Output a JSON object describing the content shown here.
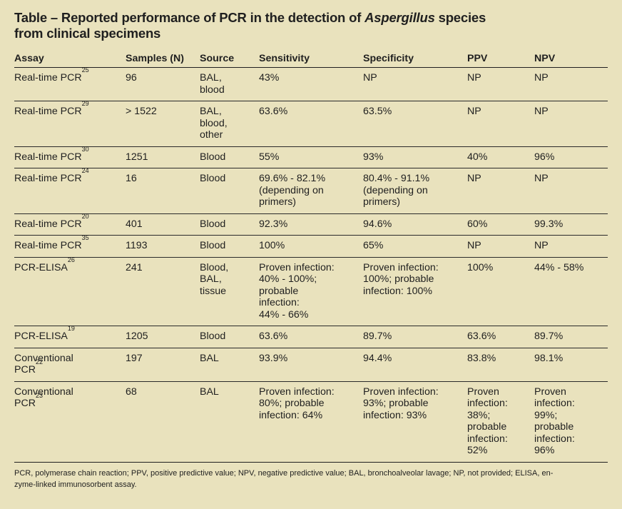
{
  "title": {
    "prefix": "Table – Reported performance of PCR in the detection of ",
    "italic": "Aspergillus",
    "suffix": " species",
    "line2": "from clinical specimens"
  },
  "headers": [
    "Assay",
    "Samples (N)",
    "Source",
    "Sensitivity",
    "Specificity",
    "PPV",
    "NPV"
  ],
  "rows": [
    {
      "assay": "Real-time PCR",
      "ref": "25",
      "samples": "96",
      "source": "BAL,\nblood",
      "sensitivity": "43%",
      "specificity": "NP",
      "ppv": "NP",
      "npv": "NP"
    },
    {
      "assay": "Real-time PCR",
      "ref": "29",
      "samples": "> 1522",
      "source": "BAL,\nblood,\nother",
      "sensitivity": "63.6%",
      "specificity": "63.5%",
      "ppv": "NP",
      "npv": "NP"
    },
    {
      "assay": "Real-time PCR",
      "ref": "30",
      "samples": "1251",
      "source": "Blood",
      "sensitivity": "55%",
      "specificity": "93%",
      "ppv": "40%",
      "npv": "96%"
    },
    {
      "assay": "Real-time PCR",
      "ref": "24",
      "samples": "16",
      "source": "Blood",
      "sensitivity": "69.6% - 82.1%\n(depending on\nprimers)",
      "specificity": "80.4% - 91.1%\n(depending on\nprimers)",
      "ppv": "NP",
      "npv": "NP"
    },
    {
      "assay": "Real-time PCR",
      "ref": "20",
      "samples": "401",
      "source": "Blood",
      "sensitivity": "92.3%",
      "specificity": "94.6%",
      "ppv": "60%",
      "npv": "99.3%"
    },
    {
      "assay": "Real-time PCR",
      "ref": "35",
      "samples": "1193",
      "source": "Blood",
      "sensitivity": "100%",
      "specificity": "65%",
      "ppv": "NP",
      "npv": "NP"
    },
    {
      "assay": "PCR-ELISA",
      "ref": "26",
      "samples": "241",
      "source": "Blood,\nBAL,\ntissue",
      "sensitivity": "Proven infection:\n40% - 100%;\nprobable\ninfection:\n44% - 66%",
      "specificity": "Proven infection:\n100%; probable\ninfection: 100%",
      "ppv": "100%",
      "npv": "44% - 58%"
    },
    {
      "assay": "PCR-ELISA",
      "ref": "19",
      "samples": "1205",
      "source": "Blood",
      "sensitivity": "63.6%",
      "specificity": "89.7%",
      "ppv": "63.6%",
      "npv": "89.7%"
    },
    {
      "assay": "Conventional\nPCR",
      "ref": "22",
      "samples": "197",
      "source": "BAL",
      "sensitivity": "93.9%",
      "specificity": "94.4%",
      "ppv": "83.8%",
      "npv": "98.1%"
    },
    {
      "assay": "Conventional\nPCR",
      "ref": "23",
      "samples": "68",
      "source": "BAL",
      "sensitivity": "Proven infection:\n80%; probable\ninfection: 64%",
      "specificity": "Proven infection:\n93%; probable\ninfection: 93%",
      "ppv": "Proven\ninfection:\n38%;\nprobable\ninfection:\n52%",
      "npv": "Proven\ninfection:\n99%;\nprobable\ninfection:\n96%"
    }
  ],
  "footnote": {
    "line1": "PCR, polymerase chain reaction; PPV, positive predictive value; NPV, negative predictive value; BAL, bronchoalveolar lavage; NP, not provided; ELISA, en-",
    "line2": "zyme-linked immunosorbent assay."
  }
}
